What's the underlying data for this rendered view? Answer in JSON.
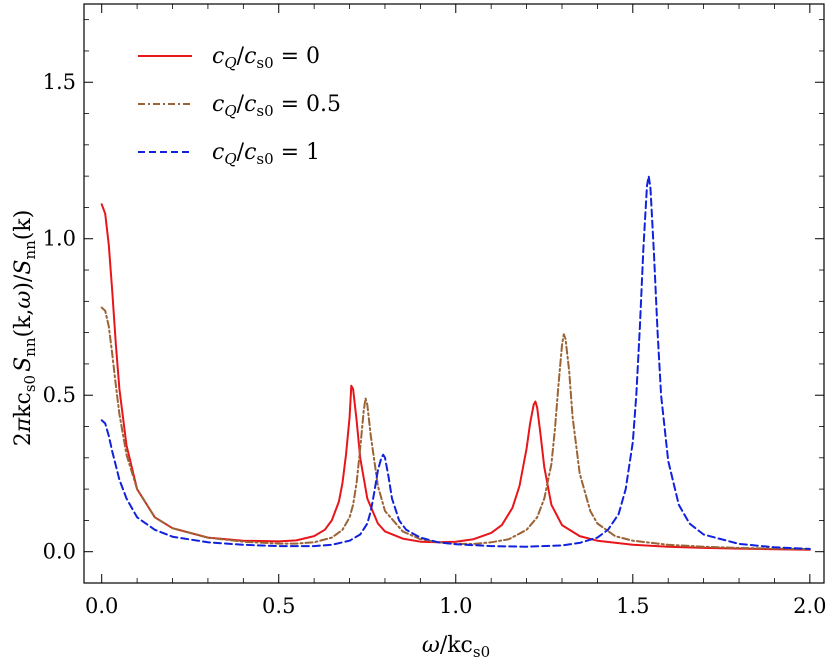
{
  "chart_data": {
    "type": "line",
    "title": "",
    "xlabel": "ω/kc_s0",
    "ylabel": "2πkc_s0 S_nn(k,ω)/S_nn(k)",
    "xlim": [
      -0.05,
      2.04
    ],
    "ylim": [
      -0.1,
      1.75
    ],
    "xticks": [
      {
        "value": 0.0,
        "label": "0.0"
      },
      {
        "value": 0.5,
        "label": "0.5"
      },
      {
        "value": 1.0,
        "label": "1.0"
      },
      {
        "value": 1.5,
        "label": "1.5"
      },
      {
        "value": 2.0,
        "label": "2.0"
      }
    ],
    "yticks": [
      {
        "value": 0.0,
        "label": "0.0"
      },
      {
        "value": 0.5,
        "label": "0.5"
      },
      {
        "value": 1.0,
        "label": "1.0"
      },
      {
        "value": 1.5,
        "label": "1.5"
      }
    ],
    "grid": false,
    "legend_position": "top-left",
    "series": [
      {
        "name": "c_Q/c_s0 = 0",
        "legend_label": "c_Q/c_s0 = 0",
        "color": "#e8151b",
        "dash": "solid",
        "x": [
          0.0,
          0.01,
          0.02,
          0.03,
          0.04,
          0.05,
          0.07,
          0.1,
          0.15,
          0.2,
          0.3,
          0.4,
          0.5,
          0.55,
          0.6,
          0.63,
          0.65,
          0.67,
          0.68,
          0.69,
          0.7,
          0.705,
          0.71,
          0.72,
          0.73,
          0.75,
          0.78,
          0.8,
          0.85,
          0.9,
          0.95,
          1.0,
          1.05,
          1.1,
          1.13,
          1.16,
          1.18,
          1.2,
          1.21,
          1.22,
          1.225,
          1.23,
          1.24,
          1.25,
          1.27,
          1.3,
          1.35,
          1.4,
          1.5,
          1.6,
          1.7,
          1.8,
          1.9,
          2.0
        ],
        "y": [
          1.11,
          1.08,
          0.98,
          0.83,
          0.66,
          0.52,
          0.34,
          0.2,
          0.11,
          0.075,
          0.045,
          0.035,
          0.033,
          0.036,
          0.05,
          0.07,
          0.1,
          0.16,
          0.22,
          0.31,
          0.43,
          0.53,
          0.52,
          0.42,
          0.3,
          0.17,
          0.09,
          0.065,
          0.042,
          0.032,
          0.03,
          0.032,
          0.04,
          0.06,
          0.085,
          0.14,
          0.21,
          0.33,
          0.41,
          0.47,
          0.48,
          0.46,
          0.37,
          0.27,
          0.15,
          0.085,
          0.05,
          0.035,
          0.022,
          0.016,
          0.012,
          0.01,
          0.008,
          0.006
        ]
      },
      {
        "name": "c_Q/c_s0 = 0.5",
        "legend_label": "c_Q/c_s0 = 0.5",
        "color": "#9a6436",
        "dash": "dashdot",
        "x": [
          0.0,
          0.01,
          0.02,
          0.03,
          0.04,
          0.05,
          0.07,
          0.1,
          0.15,
          0.2,
          0.3,
          0.4,
          0.5,
          0.55,
          0.6,
          0.65,
          0.68,
          0.7,
          0.71,
          0.72,
          0.73,
          0.74,
          0.745,
          0.75,
          0.76,
          0.78,
          0.8,
          0.85,
          0.9,
          0.95,
          1.0,
          1.05,
          1.1,
          1.15,
          1.2,
          1.23,
          1.25,
          1.27,
          1.28,
          1.29,
          1.3,
          1.305,
          1.31,
          1.32,
          1.33,
          1.35,
          1.38,
          1.4,
          1.45,
          1.5,
          1.6,
          1.7,
          1.8,
          1.9,
          2.0
        ],
        "y": [
          0.78,
          0.77,
          0.72,
          0.63,
          0.53,
          0.44,
          0.31,
          0.2,
          0.11,
          0.075,
          0.045,
          0.032,
          0.026,
          0.026,
          0.03,
          0.045,
          0.07,
          0.11,
          0.15,
          0.22,
          0.33,
          0.45,
          0.49,
          0.47,
          0.37,
          0.21,
          0.13,
          0.065,
          0.04,
          0.03,
          0.025,
          0.025,
          0.03,
          0.04,
          0.07,
          0.11,
          0.17,
          0.28,
          0.39,
          0.53,
          0.66,
          0.695,
          0.68,
          0.58,
          0.43,
          0.25,
          0.13,
          0.09,
          0.05,
          0.035,
          0.022,
          0.016,
          0.012,
          0.01,
          0.008
        ]
      },
      {
        "name": "c_Q/c_s0 = 1",
        "legend_label": "c_Q/c_s0 = 1",
        "color": "#1122dd",
        "dash": "dashed",
        "x": [
          0.0,
          0.01,
          0.02,
          0.03,
          0.05,
          0.07,
          0.1,
          0.15,
          0.2,
          0.3,
          0.4,
          0.5,
          0.6,
          0.65,
          0.7,
          0.73,
          0.75,
          0.76,
          0.77,
          0.78,
          0.79,
          0.795,
          0.8,
          0.81,
          0.82,
          0.84,
          0.86,
          0.9,
          0.95,
          1.0,
          1.1,
          1.2,
          1.3,
          1.35,
          1.4,
          1.43,
          1.46,
          1.48,
          1.5,
          1.51,
          1.52,
          1.53,
          1.54,
          1.545,
          1.55,
          1.56,
          1.57,
          1.58,
          1.6,
          1.63,
          1.66,
          1.7,
          1.8,
          1.9,
          2.0
        ],
        "y": [
          0.42,
          0.41,
          0.37,
          0.32,
          0.23,
          0.17,
          0.11,
          0.07,
          0.048,
          0.03,
          0.022,
          0.018,
          0.018,
          0.022,
          0.035,
          0.055,
          0.09,
          0.13,
          0.19,
          0.26,
          0.3,
          0.31,
          0.3,
          0.24,
          0.17,
          0.1,
          0.07,
          0.045,
          0.03,
          0.024,
          0.018,
          0.016,
          0.02,
          0.028,
          0.045,
          0.07,
          0.12,
          0.2,
          0.35,
          0.5,
          0.72,
          0.97,
          1.17,
          1.2,
          1.16,
          0.95,
          0.7,
          0.5,
          0.29,
          0.15,
          0.09,
          0.055,
          0.025,
          0.014,
          0.009
        ]
      }
    ]
  }
}
